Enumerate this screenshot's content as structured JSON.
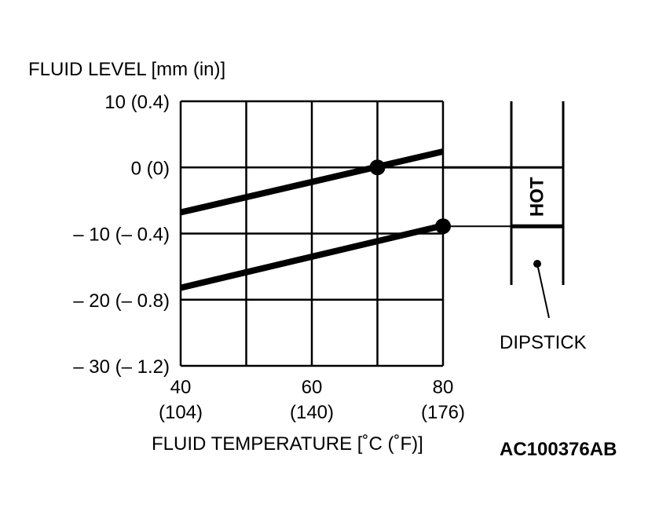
{
  "chart_data": {
    "type": "line",
    "ylabel": "FLUID LEVEL [mm (in)]",
    "xlabel": "FLUID TEMPERATURE [˚C (˚F)]",
    "xlim": [
      40,
      80
    ],
    "ylim": [
      -30,
      10
    ],
    "grid": true,
    "xticks": [
      {
        "value": 40,
        "label": "40",
        "sublabel": "(104)"
      },
      {
        "value": 60,
        "label": "60",
        "sublabel": "(140)"
      },
      {
        "value": 80,
        "label": "80",
        "sublabel": "(176)"
      }
    ],
    "xgrid": [
      40,
      50,
      60,
      70,
      80
    ],
    "yticks": [
      {
        "value": 10,
        "label": "10 (0.4)"
      },
      {
        "value": 0,
        "label": "0 (0)"
      },
      {
        "value": -10,
        "label": "– 10 (– 0.4)"
      },
      {
        "value": -20,
        "label": "– 20 (– 0.8)"
      },
      {
        "value": -30,
        "label": "– 30 (– 1.2)"
      }
    ],
    "series": [
      {
        "x": [
          40,
          80
        ],
        "y": [
          -6.8,
          2.4
        ]
      },
      {
        "x": [
          40,
          80
        ],
        "y": [
          -18.2,
          -8.8
        ]
      }
    ],
    "markers": [
      {
        "x": 70,
        "y": 0
      },
      {
        "x": 80,
        "y": -8.9
      }
    ]
  },
  "dipstick": {
    "label": "DIPSTICK",
    "zone_label": "HOT",
    "hot_top": 0,
    "hot_bottom": -8.9
  },
  "figure_id": "AC100376AB",
  "colors": {
    "ink": "#000000",
    "background": "#ffffff"
  }
}
